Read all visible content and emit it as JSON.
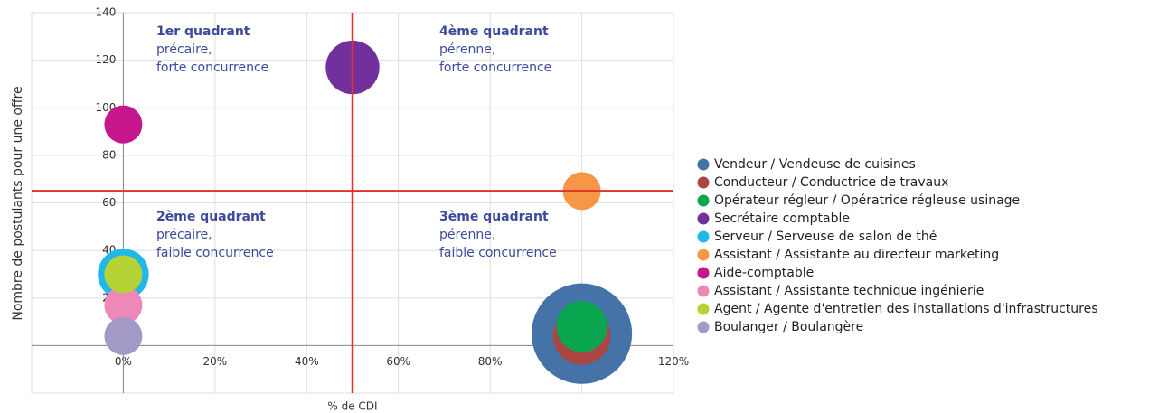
{
  "chart_data": {
    "type": "bubble",
    "x_label": "% de CDI",
    "y_label": "Nombre de postulants pour une offre",
    "xlim": [
      -20,
      120
    ],
    "ylim": [
      -20,
      140
    ],
    "xticks": [
      {
        "value": 0,
        "label": "0%"
      },
      {
        "value": 20,
        "label": "20%"
      },
      {
        "value": 40,
        "label": "40%"
      },
      {
        "value": 60,
        "label": "60%"
      },
      {
        "value": 80,
        "label": "80%"
      },
      {
        "value": 100,
        "label": "100%"
      },
      {
        "value": 120,
        "label": "120%"
      }
    ],
    "yticks": [
      0,
      20,
      40,
      60,
      80,
      100,
      120,
      140
    ],
    "grid": true,
    "legend": "right",
    "quadrant_lines": {
      "x": 50,
      "y": 65,
      "color": "#e3312d"
    },
    "annotations": [
      {
        "title": "1er quadrant",
        "lines": [
          "précaire,",
          "forte concurrence"
        ]
      },
      {
        "title": "4ème quadrant",
        "lines": [
          "pérenne,",
          "forte concurrence"
        ]
      },
      {
        "title": "2ème quadrant",
        "lines": [
          "précaire,",
          "faible concurrence"
        ]
      },
      {
        "title": "3ème quadrant",
        "lines": [
          "pérenne,",
          "faible concurrence"
        ]
      }
    ],
    "series": [
      {
        "name": "Vendeur / Vendeuse de cuisines",
        "color": "#4572a7",
        "x": 100,
        "y": 5,
        "size": 7
      },
      {
        "name": "Conducteur / Conductrice de travaux",
        "color": "#aa4643",
        "x": 100,
        "y": 4,
        "size": 2.3
      },
      {
        "name": "Opérateur régleur / Opératrice régleuse usinage",
        "color": "#0aa64f",
        "x": 100,
        "y": 8,
        "size": 1.8
      },
      {
        "name": "Secrétaire comptable",
        "color": "#71309b",
        "x": 50,
        "y": 117,
        "size": 2
      },
      {
        "name": "Serveur / Serveuse de salon de thé",
        "color": "#1fb8e8",
        "x": 0,
        "y": 30,
        "size": 1.8
      },
      {
        "name": "Assistant / Assistante au directeur marketing",
        "color": "#f79646",
        "x": 100,
        "y": 65,
        "size": 1
      },
      {
        "name": "Aide-comptable",
        "color": "#c6168d",
        "x": 0,
        "y": 93,
        "size": 1
      },
      {
        "name": "Assistant / Assistante technique ingénierie",
        "color": "#ee88b9",
        "x": 0,
        "y": 17,
        "size": 1
      },
      {
        "name": "Agent / Agente d'entretien des installations d'infrastructures",
        "color": "#b5d334",
        "x": 0,
        "y": 30,
        "size": 1
      },
      {
        "name": "Boulanger / Boulangère",
        "color": "#a399c6",
        "x": 0,
        "y": 4,
        "size": 1
      }
    ]
  }
}
